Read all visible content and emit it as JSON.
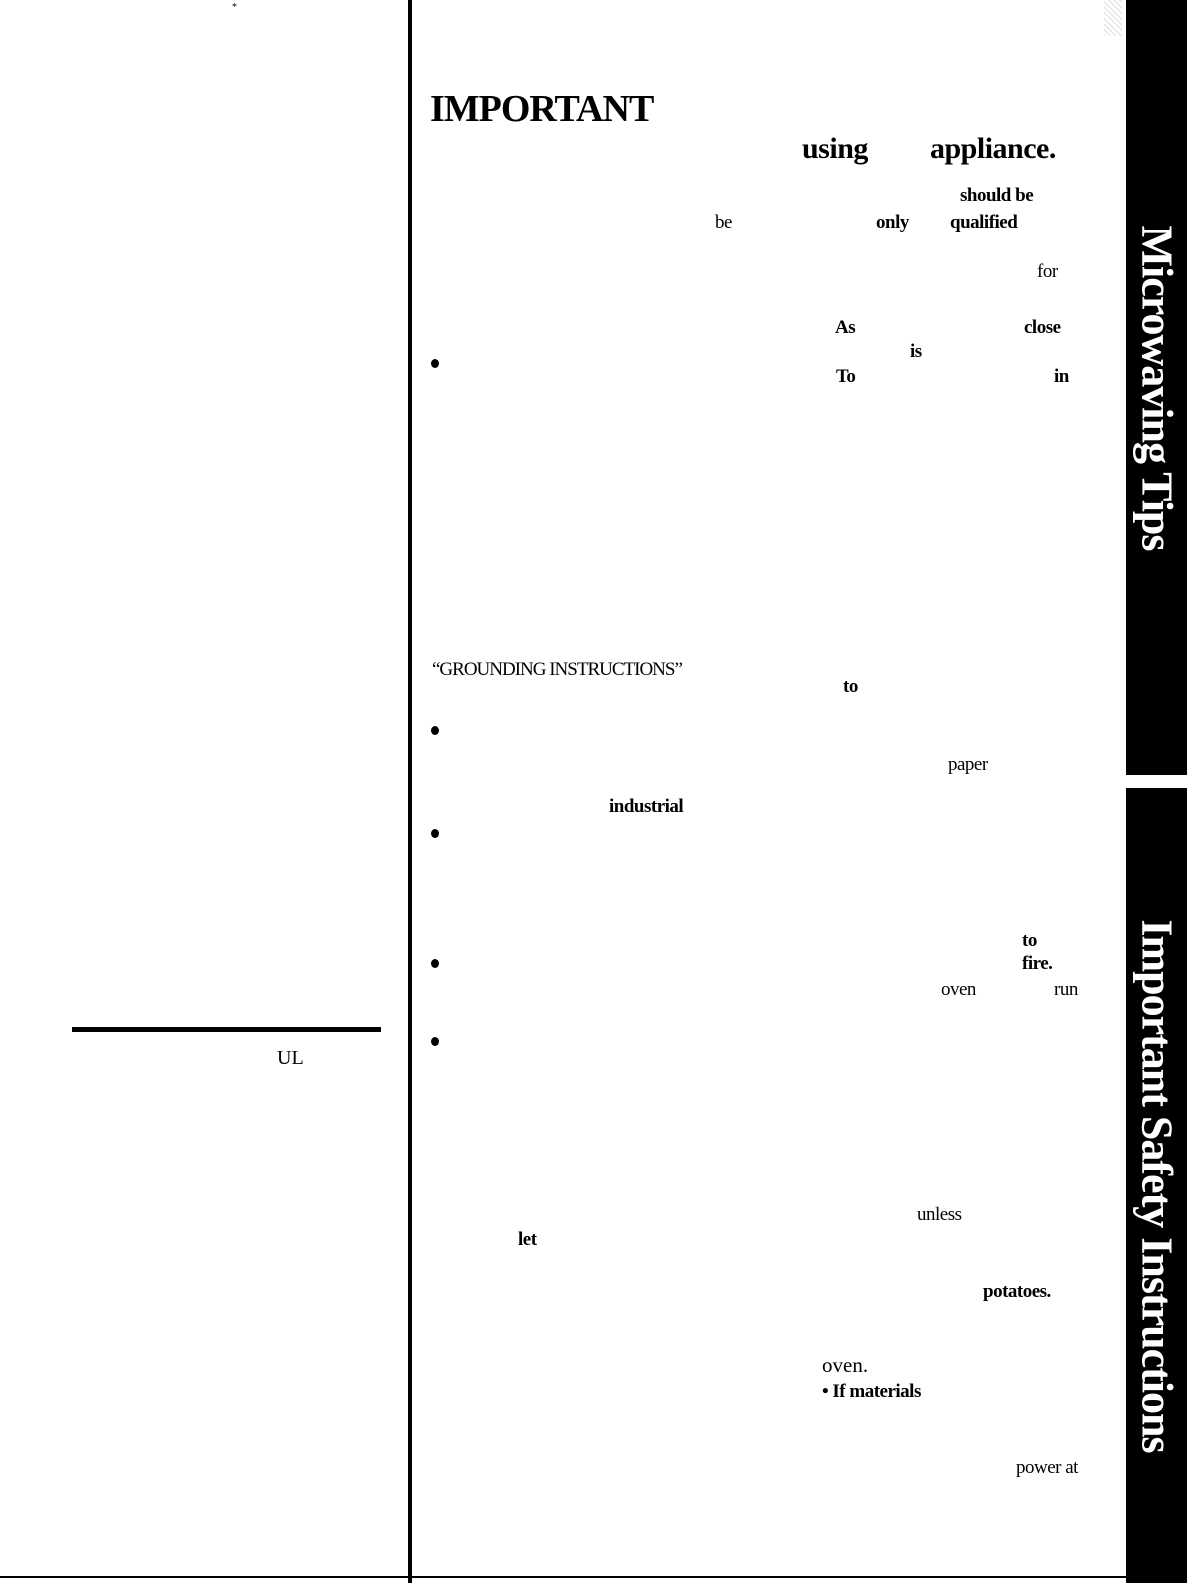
{
  "heading": {
    "title": "IMPORTANT",
    "line2_word1": "using",
    "line2_word2": "appliance."
  },
  "fragments": [
    {
      "id": "should-be",
      "text": "should be"
    },
    {
      "id": "be",
      "text": "be"
    },
    {
      "id": "only",
      "text": "only"
    },
    {
      "id": "qualified",
      "text": "qualified"
    },
    {
      "id": "for",
      "text": "for"
    },
    {
      "id": "as",
      "text": "As"
    },
    {
      "id": "close",
      "text": "close"
    },
    {
      "id": "is",
      "text": "is"
    },
    {
      "id": "to-1",
      "text": "To"
    },
    {
      "id": "in",
      "text": "in"
    },
    {
      "id": "grounding",
      "text": "“GROUNDING INSTRUCTIONS”"
    },
    {
      "id": "to-2",
      "text": "to"
    },
    {
      "id": "paper",
      "text": "paper"
    },
    {
      "id": "industrial",
      "text": "industrial"
    },
    {
      "id": "to-3",
      "text": "to"
    },
    {
      "id": "fire",
      "text": "fire."
    },
    {
      "id": "oven-1",
      "text": "oven"
    },
    {
      "id": "run",
      "text": "run"
    },
    {
      "id": "unless",
      "text": "unless"
    },
    {
      "id": "let",
      "text": "let"
    },
    {
      "id": "potatoes",
      "text": "potatoes."
    },
    {
      "id": "oven-2",
      "text": "oven."
    },
    {
      "id": "if-materials",
      "text": "• If materials"
    },
    {
      "id": "power-at",
      "text": "power at"
    },
    {
      "id": "ul",
      "text": "UL"
    }
  ],
  "tabs": {
    "tab1": "Microwaving Tips",
    "tab2": "Important Safety Instructions"
  }
}
